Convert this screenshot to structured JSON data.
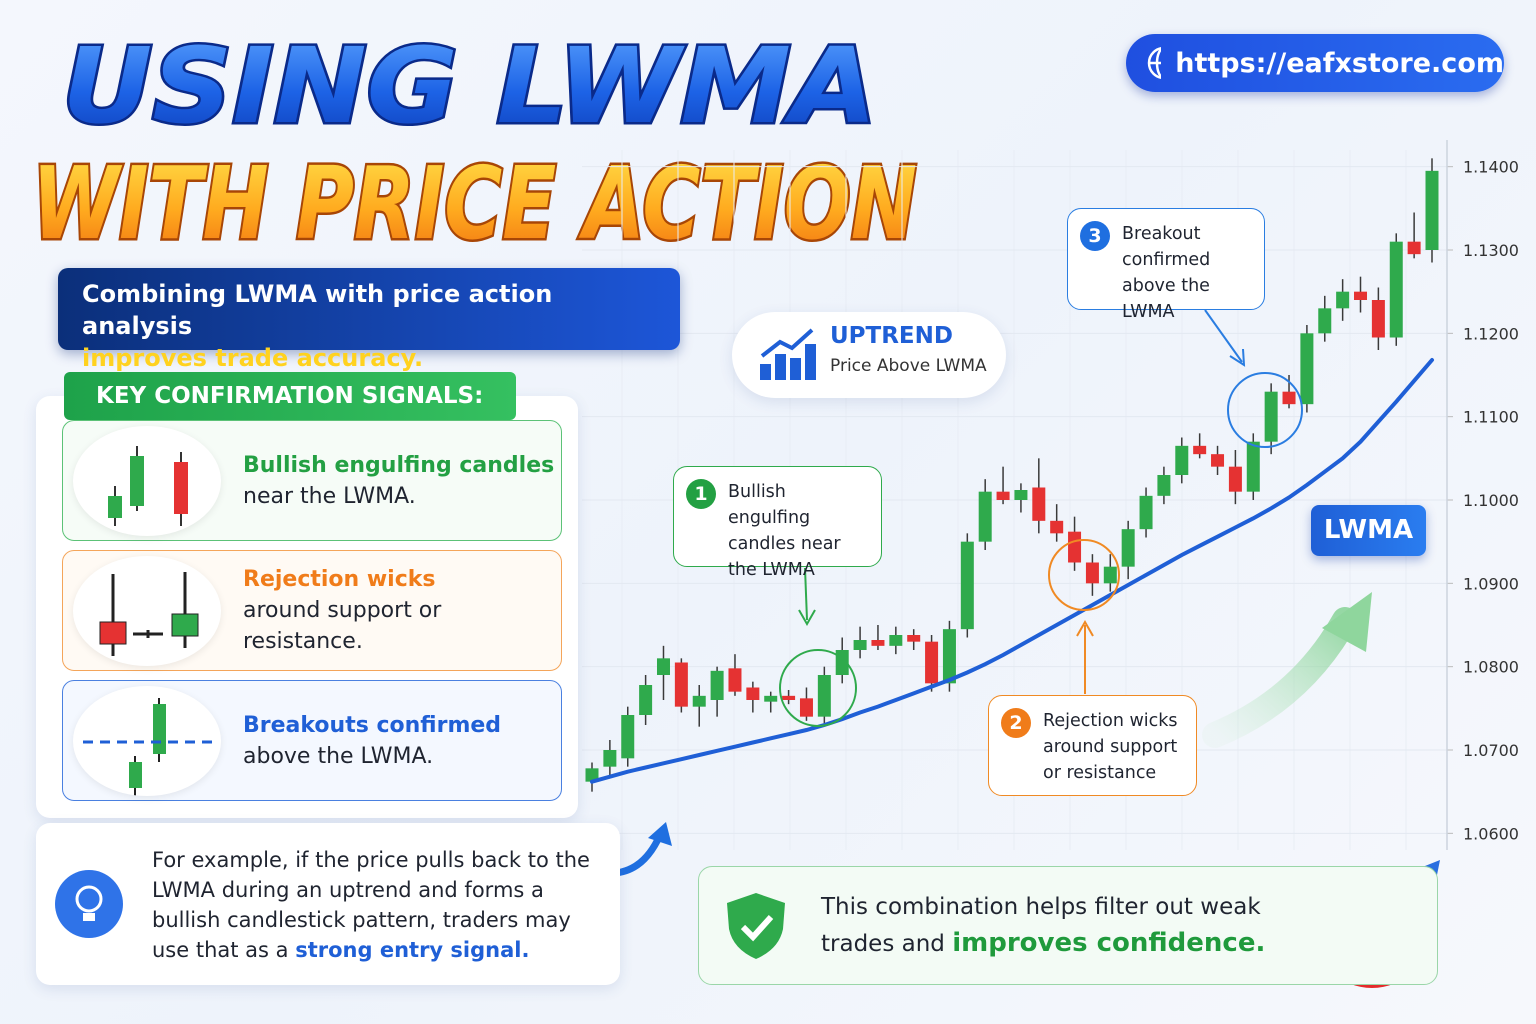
{
  "header": {
    "title_line1": "USING LWMA",
    "title_line2": "WITH PRICE ACTION",
    "url": "https://eafxstore.com"
  },
  "intro": {
    "text": "Combining LWMA with price action analysis",
    "highlight": "improves trade accuracy."
  },
  "signals": {
    "heading": "KEY CONFIRMATION SIGNALS:",
    "items": [
      {
        "title": "Bullish engulfing candles",
        "text": "near the LWMA."
      },
      {
        "title": "Rejection wicks",
        "text": "around support or resistance."
      },
      {
        "title": "Breakouts confirmed",
        "text": "above the LWMA."
      }
    ]
  },
  "example": {
    "text": "For example, if the price pulls back to the LWMA during an uptrend and forms a bullish candlestick pattern, traders may use that as a",
    "highlight": "strong entry signal."
  },
  "conclusion": {
    "text": "This combination helps filter out weak trades and",
    "highlight": "improves confidence."
  },
  "chart_data": {
    "type": "candlestick",
    "badge": {
      "title": "UPTREND",
      "subtitle": "Price Above LWMA"
    },
    "annotations": [
      {
        "number": 1,
        "text": "Bullish engulfing candles near the LWMA"
      },
      {
        "number": 2,
        "text": "Rejection wicks around support or resistance"
      },
      {
        "number": 3,
        "text": "Breakout confirmed above the LWMA"
      }
    ],
    "up_color": "#2faa4c",
    "down_color": "#e53232",
    "candles": {
      "open": [
        1.0662,
        1.068,
        1.069,
        1.0742,
        1.079,
        1.0805,
        1.0752,
        1.076,
        1.0798,
        1.0775,
        1.0758,
        1.0765,
        1.0762,
        1.074,
        1.079,
        1.082,
        1.0832,
        1.0825,
        1.0838,
        1.083,
        1.078,
        1.0845,
        1.095,
        1.101,
        1.1,
        1.1015,
        1.0975,
        1.0962,
        1.0925,
        1.09,
        1.092,
        1.0965,
        1.1005,
        1.103,
        1.1065,
        1.1055,
        1.104,
        1.101,
        1.107,
        1.113,
        1.1115,
        1.12,
        1.123,
        1.125,
        1.124,
        1.1195,
        1.131,
        1.13
      ],
      "high": [
        1.0685,
        1.0712,
        1.0752,
        1.079,
        1.0825,
        1.081,
        1.0778,
        1.08,
        1.0815,
        1.0782,
        1.077,
        1.0772,
        1.0775,
        1.08,
        1.0835,
        1.0848,
        1.085,
        1.0848,
        1.0845,
        1.0838,
        1.0855,
        1.096,
        1.1025,
        1.104,
        1.102,
        1.105,
        1.0995,
        1.098,
        1.0935,
        1.0935,
        1.0975,
        1.1015,
        1.104,
        1.1075,
        1.108,
        1.1065,
        1.106,
        1.108,
        1.114,
        1.115,
        1.121,
        1.1245,
        1.1265,
        1.1268,
        1.1255,
        1.132,
        1.1345,
        1.141
      ],
      "low": [
        1.065,
        1.0668,
        1.068,
        1.073,
        1.076,
        1.0745,
        1.0728,
        1.074,
        1.0765,
        1.0745,
        1.0745,
        1.0755,
        1.0735,
        1.0732,
        1.078,
        1.081,
        1.082,
        1.0815,
        1.082,
        1.077,
        1.077,
        1.0835,
        1.094,
        1.0995,
        1.0985,
        1.096,
        1.095,
        1.0915,
        1.0885,
        1.089,
        1.0905,
        1.0955,
        1.0995,
        1.102,
        1.105,
        1.103,
        1.0995,
        1.1,
        1.1055,
        1.111,
        1.1105,
        1.119,
        1.1215,
        1.1225,
        1.118,
        1.1185,
        1.129,
        1.1285
      ],
      "close": [
        1.0678,
        1.07,
        1.0742,
        1.0778,
        1.081,
        1.0752,
        1.0765,
        1.0795,
        1.077,
        1.076,
        1.0765,
        1.076,
        1.074,
        1.079,
        1.082,
        1.0832,
        1.0825,
        1.0838,
        1.083,
        1.078,
        1.0845,
        1.095,
        1.101,
        1.1,
        1.1012,
        1.0975,
        1.096,
        1.0925,
        1.09,
        1.092,
        1.0965,
        1.1005,
        1.103,
        1.1065,
        1.1055,
        1.104,
        1.101,
        1.107,
        1.113,
        1.1115,
        1.12,
        1.123,
        1.125,
        1.124,
        1.1195,
        1.131,
        1.1295,
        1.1395
      ]
    },
    "line": {
      "name": "LWMA",
      "color": "#1f5fd6",
      "values": [
        1.0662,
        1.0668,
        1.0674,
        1.0679,
        1.0684,
        1.0689,
        1.0694,
        1.0699,
        1.0704,
        1.0709,
        1.0714,
        1.0719,
        1.0724,
        1.073,
        1.0737,
        1.0745,
        1.0752,
        1.076,
        1.0768,
        1.0776,
        1.0784,
        1.0793,
        1.0803,
        1.0814,
        1.0826,
        1.0838,
        1.085,
        1.0862,
        1.0874,
        1.0886,
        1.0898,
        1.091,
        1.0922,
        1.0934,
        1.0945,
        1.0956,
        1.0967,
        1.0978,
        1.099,
        1.1003,
        1.1018,
        1.1034,
        1.105,
        1.107,
        1.1094,
        1.1118,
        1.1143,
        1.1168
      ]
    },
    "ylim": [
      1.058,
      1.142
    ],
    "yticks": [
      {
        "value": 1.06,
        "label": "1.0600"
      },
      {
        "value": 1.07,
        "label": "1.0700"
      },
      {
        "value": 1.08,
        "label": "1.0800"
      },
      {
        "value": 1.09,
        "label": "1.0900"
      },
      {
        "value": 1.1,
        "label": "1.1000"
      },
      {
        "value": 1.11,
        "label": "1.1100"
      },
      {
        "value": 1.12,
        "label": "1.1200"
      },
      {
        "value": 1.13,
        "label": "1.1300"
      },
      {
        "value": 1.14,
        "label": "1.1400"
      }
    ],
    "grid": true
  }
}
